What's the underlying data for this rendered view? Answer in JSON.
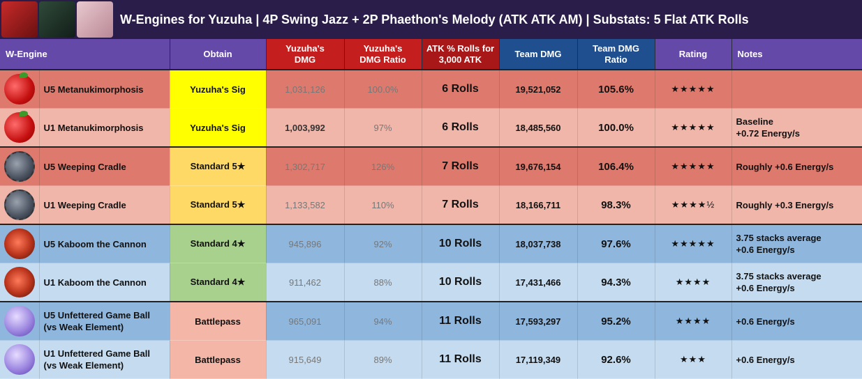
{
  "title": "W-Engines for Yuzuha | 4P Swing Jazz + 2P Phaethon's Melody (ATK ATK AM) | Substats: 5 Flat ATK Rolls",
  "headers": {
    "wengine": "W-Engine",
    "obtain": "Obtain",
    "dmg": "Yuzuha's DMG",
    "dmg_ratio": "Yuzuha's DMG Ratio",
    "atk_rolls": "ATK % Rolls for 3,000 ATK",
    "team_dmg": "Team DMG",
    "team_ratio": "Team DMG Ratio",
    "rating": "Rating",
    "notes": "Notes"
  },
  "rows": [
    {
      "icon": "apple-icon",
      "name": "U5 Metanukimorphosis",
      "obtain": "Yuzuha's Sig",
      "dmg": "1,031,126",
      "dmg_ratio": "100.0%",
      "rolls": "6 Rolls",
      "team_dmg": "19,521,052",
      "team_ratio": "105.6%",
      "rating": "★★★★★",
      "notes": ""
    },
    {
      "icon": "apple-icon",
      "name": "U1 Metanukimorphosis",
      "obtain": "Yuzuha's Sig",
      "dmg": "1,003,992",
      "dmg_ratio": "97%",
      "rolls": "6 Rolls",
      "team_dmg": "18,485,560",
      "team_ratio": "100.0%",
      "rating": "★★★★★",
      "notes": "Baseline\n+0.72 Energy/s"
    },
    {
      "icon": "cradle-icon",
      "name": "U5 Weeping Cradle",
      "obtain": "Standard 5★",
      "dmg": "1,302,717",
      "dmg_ratio": "126%",
      "rolls": "7 Rolls",
      "team_dmg": "19,676,154",
      "team_ratio": "106.4%",
      "rating": "★★★★★",
      "notes": "Roughly +0.6 Energy/s"
    },
    {
      "icon": "cradle-icon",
      "name": "U1 Weeping Cradle",
      "obtain": "Standard 5★",
      "dmg": "1,133,582",
      "dmg_ratio": "110%",
      "rolls": "7 Rolls",
      "team_dmg": "18,166,711",
      "team_ratio": "98.3%",
      "rating": "★★★★½",
      "notes": "Roughly +0.3 Energy/s"
    },
    {
      "icon": "kaboom-icon",
      "name": "U5 Kaboom the Cannon",
      "obtain": "Standard 4★",
      "dmg": "945,896",
      "dmg_ratio": "92%",
      "rolls": "10 Rolls",
      "team_dmg": "18,037,738",
      "team_ratio": "97.6%",
      "rating": "★★★★★",
      "notes": "3.75 stacks average\n+0.6 Energy/s"
    },
    {
      "icon": "kaboom-icon",
      "name": "U1 Kaboom the Cannon",
      "obtain": "Standard 4★",
      "dmg": "911,462",
      "dmg_ratio": "88%",
      "rolls": "10 Rolls",
      "team_dmg": "17,431,466",
      "team_ratio": "94.3%",
      "rating": "★★★★",
      "notes": "3.75 stacks average\n+0.6 Energy/s"
    },
    {
      "icon": "game-ball-icon",
      "name": "U5 Unfettered Game Ball\n(vs Weak Element)",
      "obtain": "Battlepass",
      "dmg": "965,091",
      "dmg_ratio": "94%",
      "rolls": "11 Rolls",
      "team_dmg": "17,593,297",
      "team_ratio": "95.2%",
      "rating": "★★★★",
      "notes": "+0.6 Energy/s"
    },
    {
      "icon": "game-ball-icon",
      "name": "U1 Unfettered Game Ball\n(vs Weak Element)",
      "obtain": "Battlepass",
      "dmg": "915,649",
      "dmg_ratio": "89%",
      "rolls": "11 Rolls",
      "team_dmg": "17,119,349",
      "team_ratio": "92.6%",
      "rating": "★★★",
      "notes": "+0.6 Energy/s"
    }
  ]
}
